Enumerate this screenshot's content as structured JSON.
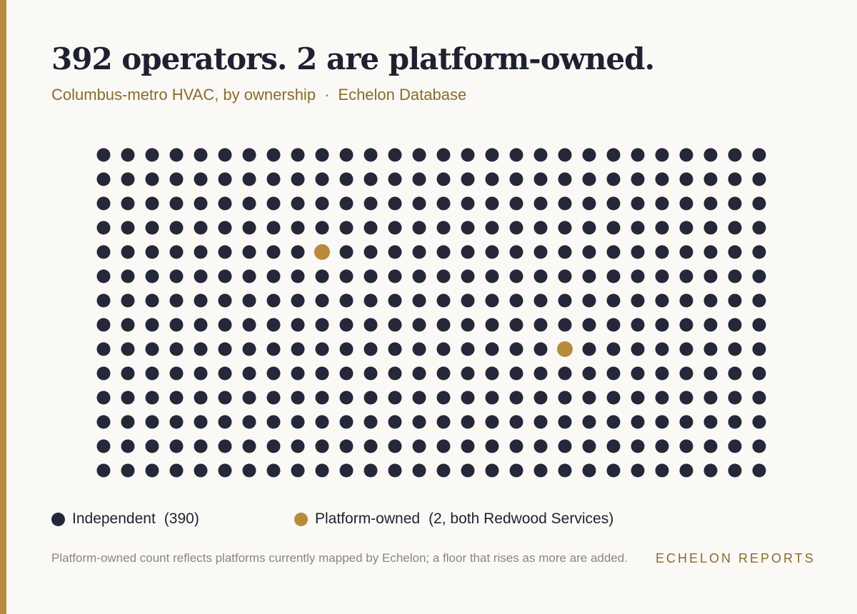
{
  "title": "392 operators. 2 are platform-owned.",
  "subtitle": {
    "text": "Columbus-metro HVAC, by ownership",
    "separator": "·",
    "source": "Echelon Database"
  },
  "colors": {
    "accent": "#b88a3d",
    "background": "#faf9f5",
    "independent": "#252838",
    "platform": "#b88a3d",
    "subtitle": "#8a6a2c",
    "footnote": "#8a8778"
  },
  "chart_data": {
    "type": "waffle",
    "total": 392,
    "rows": 14,
    "columns": 28,
    "series": [
      {
        "name": "Independent",
        "count": 390
      },
      {
        "name": "Platform-owned",
        "count": 2
      }
    ],
    "highlighted_units": [
      {
        "series": "Platform-owned",
        "row": 5,
        "column": 10
      },
      {
        "series": "Platform-owned",
        "row": 9,
        "column": 20
      }
    ]
  },
  "legend": {
    "independent": {
      "label": "Independent",
      "count": "(390)"
    },
    "platform": {
      "label": "Platform-owned",
      "count": "(2, both Redwood Services)"
    }
  },
  "footnote": "Platform-owned count reflects platforms currently mapped by Echelon; a floor that rises as more are added.",
  "brand": "ECHELON REPORTS"
}
